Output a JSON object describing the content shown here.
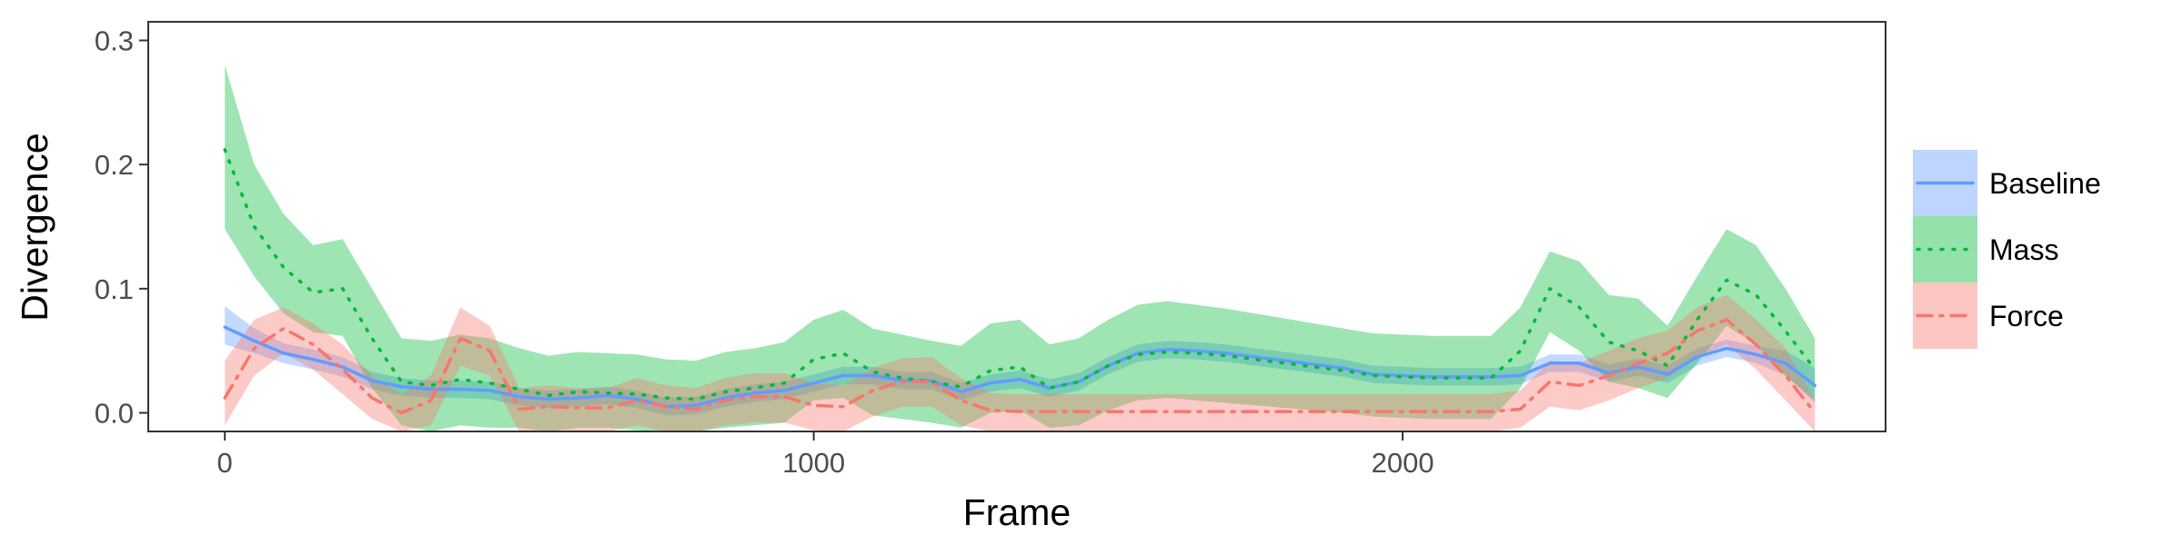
{
  "chart_data": {
    "type": "line",
    "xlabel": "Frame",
    "ylabel": "Divergence",
    "xlim": [
      -130,
      2820
    ],
    "ylim": [
      -0.015,
      0.315
    ],
    "x_ticks": [
      0,
      1000,
      2000
    ],
    "x_tick_labels": [
      "0",
      "1000",
      "2000"
    ],
    "y_ticks": [
      0.0,
      0.1,
      0.2,
      0.3
    ],
    "y_tick_labels": [
      "0.0",
      "0.1",
      "0.2",
      "0.3"
    ],
    "grid": false,
    "legend_position": "right",
    "series": [
      {
        "name": "Baseline",
        "color": "#619CFF",
        "dash": "solid",
        "x": [
          0,
          50,
          100,
          150,
          200,
          250,
          300,
          350,
          400,
          450,
          500,
          550,
          600,
          650,
          700,
          750,
          800,
          850,
          900,
          950,
          1000,
          1050,
          1100,
          1150,
          1200,
          1250,
          1300,
          1350,
          1400,
          1450,
          1500,
          1550,
          1600,
          1650,
          1700,
          1750,
          1800,
          1850,
          1900,
          1950,
          2000,
          2050,
          2100,
          2150,
          2200,
          2250,
          2300,
          2350,
          2400,
          2450,
          2500,
          2550,
          2600,
          2650,
          2700
        ],
        "y": [
          0.069,
          0.058,
          0.048,
          0.043,
          0.037,
          0.026,
          0.021,
          0.019,
          0.019,
          0.018,
          0.013,
          0.011,
          0.012,
          0.014,
          0.011,
          0.005,
          0.006,
          0.012,
          0.016,
          0.018,
          0.024,
          0.03,
          0.03,
          0.026,
          0.026,
          0.017,
          0.024,
          0.027,
          0.02,
          0.025,
          0.038,
          0.048,
          0.051,
          0.05,
          0.048,
          0.045,
          0.042,
          0.039,
          0.036,
          0.031,
          0.03,
          0.029,
          0.029,
          0.029,
          0.03,
          0.04,
          0.04,
          0.032,
          0.037,
          0.031,
          0.045,
          0.052,
          0.047,
          0.04,
          0.022
        ],
        "lower": [
          0.055,
          0.048,
          0.04,
          0.035,
          0.029,
          0.019,
          0.014,
          0.012,
          0.012,
          0.011,
          0.006,
          0.004,
          0.005,
          0.007,
          0.004,
          -0.002,
          -0.001,
          0.005,
          0.009,
          0.011,
          0.017,
          0.023,
          0.023,
          0.019,
          0.019,
          0.01,
          0.017,
          0.02,
          0.013,
          0.018,
          0.031,
          0.041,
          0.044,
          0.043,
          0.041,
          0.038,
          0.035,
          0.032,
          0.029,
          0.024,
          0.023,
          0.022,
          0.022,
          0.022,
          0.023,
          0.033,
          0.033,
          0.025,
          0.03,
          0.024,
          0.038,
          0.045,
          0.04,
          0.03,
          0.008
        ],
        "upper": [
          0.086,
          0.068,
          0.056,
          0.051,
          0.045,
          0.033,
          0.028,
          0.026,
          0.026,
          0.025,
          0.02,
          0.018,
          0.019,
          0.021,
          0.018,
          0.012,
          0.013,
          0.019,
          0.023,
          0.025,
          0.031,
          0.037,
          0.037,
          0.033,
          0.033,
          0.024,
          0.031,
          0.034,
          0.027,
          0.032,
          0.045,
          0.055,
          0.058,
          0.057,
          0.055,
          0.052,
          0.049,
          0.046,
          0.043,
          0.038,
          0.037,
          0.036,
          0.036,
          0.036,
          0.037,
          0.047,
          0.047,
          0.039,
          0.044,
          0.038,
          0.052,
          0.059,
          0.054,
          0.05,
          0.036
        ]
      },
      {
        "name": "Mass",
        "color": "#00BA38",
        "dash": "dotted",
        "x": [
          0,
          50,
          100,
          150,
          200,
          250,
          300,
          350,
          400,
          450,
          500,
          550,
          600,
          650,
          700,
          750,
          800,
          850,
          900,
          950,
          1000,
          1050,
          1100,
          1150,
          1200,
          1250,
          1300,
          1350,
          1400,
          1450,
          1500,
          1550,
          1600,
          1650,
          1700,
          1750,
          1800,
          1850,
          1900,
          1950,
          2000,
          2050,
          2100,
          2150,
          2200,
          2250,
          2300,
          2350,
          2400,
          2450,
          2500,
          2550,
          2600,
          2650,
          2700
        ],
        "y": [
          0.212,
          0.15,
          0.117,
          0.097,
          0.1,
          0.06,
          0.025,
          0.022,
          0.027,
          0.024,
          0.019,
          0.014,
          0.017,
          0.016,
          0.015,
          0.012,
          0.011,
          0.017,
          0.02,
          0.024,
          0.043,
          0.048,
          0.033,
          0.028,
          0.025,
          0.021,
          0.034,
          0.037,
          0.02,
          0.025,
          0.038,
          0.047,
          0.049,
          0.048,
          0.046,
          0.043,
          0.04,
          0.037,
          0.034,
          0.03,
          0.029,
          0.028,
          0.028,
          0.028,
          0.05,
          0.1,
          0.085,
          0.057,
          0.05,
          0.038,
          0.075,
          0.107,
          0.095,
          0.066,
          0.035
        ],
        "lower": [
          0.148,
          0.11,
          0.08,
          0.065,
          0.062,
          0.02,
          -0.01,
          -0.015,
          -0.01,
          -0.012,
          -0.012,
          -0.015,
          -0.012,
          -0.012,
          -0.014,
          -0.015,
          -0.015,
          -0.012,
          -0.01,
          -0.008,
          0.01,
          0.012,
          -0.002,
          -0.005,
          -0.008,
          -0.012,
          0.0,
          0.002,
          -0.012,
          -0.01,
          0.002,
          0.01,
          0.012,
          0.01,
          0.008,
          0.006,
          0.004,
          0.002,
          0.0,
          -0.003,
          -0.004,
          -0.005,
          -0.005,
          -0.005,
          0.02,
          0.065,
          0.05,
          0.025,
          0.02,
          0.012,
          0.04,
          0.07,
          0.055,
          0.03,
          0.01
        ],
        "upper": [
          0.28,
          0.2,
          0.16,
          0.135,
          0.14,
          0.1,
          0.06,
          0.058,
          0.063,
          0.06,
          0.052,
          0.046,
          0.049,
          0.048,
          0.047,
          0.043,
          0.042,
          0.049,
          0.052,
          0.057,
          0.075,
          0.083,
          0.068,
          0.063,
          0.058,
          0.054,
          0.072,
          0.075,
          0.055,
          0.06,
          0.075,
          0.087,
          0.09,
          0.087,
          0.084,
          0.08,
          0.076,
          0.072,
          0.068,
          0.064,
          0.063,
          0.062,
          0.062,
          0.062,
          0.085,
          0.13,
          0.122,
          0.095,
          0.092,
          0.07,
          0.11,
          0.148,
          0.135,
          0.1,
          0.06
        ]
      },
      {
        "name": "Force",
        "color": "#F8766D",
        "dash": "dashdot",
        "x": [
          0,
          50,
          100,
          150,
          200,
          250,
          300,
          350,
          400,
          450,
          500,
          550,
          600,
          650,
          700,
          750,
          800,
          850,
          900,
          950,
          1000,
          1050,
          1100,
          1150,
          1200,
          1250,
          1300,
          1350,
          1400,
          1450,
          1500,
          1550,
          1600,
          1650,
          1700,
          1750,
          1800,
          1850,
          1900,
          1950,
          2000,
          2050,
          2100,
          2150,
          2200,
          2250,
          2300,
          2350,
          2400,
          2450,
          2500,
          2550,
          2600,
          2650,
          2700
        ],
        "y": [
          0.012,
          0.052,
          0.068,
          0.055,
          0.035,
          0.012,
          0.0,
          0.01,
          0.06,
          0.05,
          0.003,
          0.005,
          0.004,
          0.004,
          0.01,
          0.005,
          0.003,
          0.01,
          0.013,
          0.013,
          0.006,
          0.005,
          0.018,
          0.025,
          0.025,
          0.01,
          0.002,
          0.001,
          0.001,
          0.001,
          0.001,
          0.001,
          0.001,
          0.001,
          0.001,
          0.001,
          0.001,
          0.001,
          0.001,
          0.001,
          0.001,
          0.001,
          0.001,
          0.001,
          0.003,
          0.025,
          0.022,
          0.03,
          0.04,
          0.048,
          0.066,
          0.075,
          0.055,
          0.03,
          0.0
        ],
        "lower": [
          -0.01,
          0.03,
          0.048,
          0.035,
          0.015,
          -0.005,
          -0.015,
          -0.01,
          0.038,
          0.03,
          -0.015,
          -0.014,
          -0.015,
          -0.015,
          -0.01,
          -0.015,
          -0.015,
          -0.01,
          -0.008,
          -0.008,
          -0.014,
          -0.015,
          -0.003,
          0.005,
          0.005,
          -0.01,
          -0.015,
          -0.015,
          -0.015,
          -0.015,
          -0.015,
          -0.015,
          -0.015,
          -0.015,
          -0.015,
          -0.015,
          -0.015,
          -0.015,
          -0.015,
          -0.015,
          -0.015,
          -0.015,
          -0.015,
          -0.015,
          -0.012,
          0.005,
          0.002,
          0.01,
          0.02,
          0.028,
          0.045,
          0.055,
          0.035,
          0.01,
          -0.015
        ],
        "upper": [
          0.042,
          0.075,
          0.085,
          0.072,
          0.055,
          0.03,
          0.015,
          0.03,
          0.085,
          0.07,
          0.02,
          0.022,
          0.02,
          0.02,
          0.028,
          0.022,
          0.02,
          0.028,
          0.032,
          0.032,
          0.024,
          0.022,
          0.036,
          0.044,
          0.045,
          0.028,
          0.016,
          0.015,
          0.015,
          0.015,
          0.015,
          0.015,
          0.015,
          0.015,
          0.015,
          0.015,
          0.015,
          0.015,
          0.015,
          0.015,
          0.015,
          0.015,
          0.015,
          0.015,
          0.018,
          0.042,
          0.04,
          0.05,
          0.06,
          0.066,
          0.085,
          0.095,
          0.075,
          0.052,
          0.01
        ]
      }
    ]
  }
}
